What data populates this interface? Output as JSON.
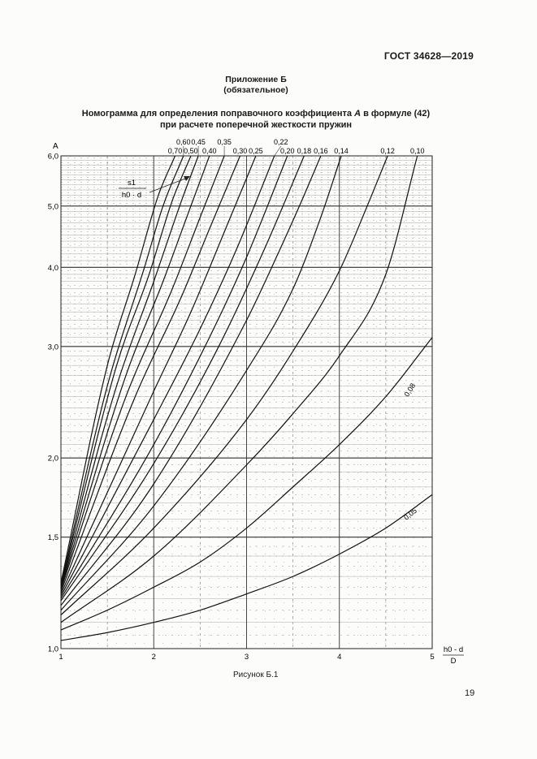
{
  "header": {
    "standard_code": "ГОСТ 34628—2019"
  },
  "appendix": {
    "title": "Приложение Б",
    "status": "(обязательное)"
  },
  "caption": {
    "line1_prefix": "Номограмма для определения поправочного коэффициента ",
    "line1_symbol": "A",
    "line1_suffix": " в формуле (42)",
    "line2": "при расчете поперечной жесткости пружин"
  },
  "figure_label": "Рисунок Б.1",
  "page_number": "19",
  "chart_data": {
    "type": "line",
    "ylabel": "A",
    "xlabel_numerator": "h0 - d",
    "xlabel_denominator": "D",
    "xlim": [
      1,
      5
    ],
    "ylim": [
      1.0,
      6.0
    ],
    "y_scale": "log",
    "grid": true,
    "x_ticks": [
      {
        "value": 1,
        "label": "1"
      },
      {
        "value": 2,
        "label": "2"
      },
      {
        "value": 3,
        "label": "3"
      },
      {
        "value": 4,
        "label": "4"
      },
      {
        "value": 5,
        "label": "5"
      }
    ],
    "y_ticks": [
      {
        "value": 1.0,
        "label": "1,0"
      },
      {
        "value": 1.5,
        "label": "1,5"
      },
      {
        "value": 2.0,
        "label": "2,0"
      },
      {
        "value": 3.0,
        "label": "3,0"
      },
      {
        "value": 4.0,
        "label": "4,0"
      },
      {
        "value": 5.0,
        "label": "5,0"
      },
      {
        "value": 6.0,
        "label": "6,0"
      }
    ],
    "parameter_symbol": "s1",
    "parameter_numerator": "s1",
    "parameter_denominator": "h0 · d",
    "series": [
      {
        "name": "0,05",
        "values": [
          [
            1.0,
            1.03
          ],
          [
            1.5,
            1.06
          ],
          [
            2.0,
            1.1
          ],
          [
            2.5,
            1.15
          ],
          [
            3.0,
            1.22
          ],
          [
            3.5,
            1.3
          ],
          [
            4.0,
            1.41
          ],
          [
            4.5,
            1.55
          ],
          [
            5.0,
            1.75
          ]
        ]
      },
      {
        "name": "0,08",
        "values": [
          [
            1.0,
            1.07
          ],
          [
            1.5,
            1.15
          ],
          [
            2.0,
            1.25
          ],
          [
            2.5,
            1.37
          ],
          [
            3.0,
            1.55
          ],
          [
            3.5,
            1.8
          ],
          [
            4.0,
            2.1
          ],
          [
            4.5,
            2.5
          ],
          [
            5.0,
            3.1
          ]
        ]
      },
      {
        "name": "0,10",
        "values": [
          [
            1.0,
            1.1
          ],
          [
            2.0,
            1.4
          ],
          [
            3.0,
            1.95
          ],
          [
            3.5,
            2.35
          ],
          [
            4.0,
            2.9
          ],
          [
            4.5,
            3.9
          ],
          [
            4.84,
            6.0
          ]
        ]
      },
      {
        "name": "0,12",
        "values": [
          [
            1.0,
            1.13
          ],
          [
            2.0,
            1.55
          ],
          [
            3.0,
            2.3
          ],
          [
            3.5,
            2.95
          ],
          [
            4.0,
            3.95
          ],
          [
            4.3,
            5.0
          ],
          [
            4.52,
            6.0
          ]
        ]
      },
      {
        "name": "0,14",
        "values": [
          [
            1.0,
            1.15
          ],
          [
            2.0,
            1.68
          ],
          [
            3.0,
            2.75
          ],
          [
            3.5,
            3.7
          ],
          [
            3.8,
            4.8
          ],
          [
            4.02,
            6.0
          ]
        ]
      },
      {
        "name": "0,16",
        "values": [
          [
            1.0,
            1.17
          ],
          [
            2.0,
            1.82
          ],
          [
            3.0,
            3.3
          ],
          [
            3.4,
            4.4
          ],
          [
            3.62,
            5.2
          ],
          [
            3.8,
            6.0
          ]
        ]
      },
      {
        "name": "0,18",
        "values": [
          [
            1.0,
            1.19
          ],
          [
            2.0,
            1.96
          ],
          [
            2.7,
            3.0
          ],
          [
            3.2,
            4.3
          ],
          [
            3.62,
            6.0
          ]
        ]
      },
      {
        "name": "0,20",
        "values": [
          [
            1.0,
            1.2
          ],
          [
            2.0,
            2.1
          ],
          [
            2.6,
            3.1
          ],
          [
            3.0,
            4.15
          ],
          [
            3.44,
            6.0
          ]
        ]
      },
      {
        "name": "0,22",
        "values": [
          [
            1.0,
            1.21
          ],
          [
            2.0,
            2.3
          ],
          [
            2.5,
            3.2
          ],
          [
            2.9,
            4.3
          ],
          [
            3.3,
            6.0
          ]
        ]
      },
      {
        "name": "0,25",
        "values": [
          [
            1.0,
            1.22
          ],
          [
            2.0,
            2.55
          ],
          [
            2.4,
            3.4
          ],
          [
            2.8,
            4.7
          ],
          [
            3.1,
            6.0
          ]
        ]
      },
      {
        "name": "0,30",
        "values": [
          [
            1.0,
            1.23
          ],
          [
            1.8,
            2.5
          ],
          [
            2.3,
            3.6
          ],
          [
            2.6,
            4.6
          ],
          [
            2.93,
            6.0
          ]
        ]
      },
      {
        "name": "0,35",
        "values": [
          [
            1.0,
            1.24
          ],
          [
            1.7,
            2.5
          ],
          [
            2.2,
            3.7
          ],
          [
            2.5,
            4.8
          ],
          [
            2.76,
            6.0
          ]
        ]
      },
      {
        "name": "0,40",
        "values": [
          [
            1.0,
            1.245
          ],
          [
            1.7,
            2.7
          ],
          [
            2.1,
            3.8
          ],
          [
            2.4,
            5.0
          ],
          [
            2.6,
            6.0
          ]
        ]
      },
      {
        "name": "0,45",
        "values": [
          [
            1.0,
            1.25
          ],
          [
            1.6,
            2.6
          ],
          [
            2.0,
            3.8
          ],
          [
            2.3,
            5.1
          ],
          [
            2.48,
            6.0
          ]
        ]
      },
      {
        "name": "0,50",
        "values": [
          [
            1.0,
            1.255
          ],
          [
            1.6,
            2.8
          ],
          [
            1.95,
            3.9
          ],
          [
            2.2,
            5.1
          ],
          [
            2.4,
            6.0
          ]
        ]
      },
      {
        "name": "0,60",
        "values": [
          [
            1.0,
            1.26
          ],
          [
            1.5,
            2.6
          ],
          [
            1.9,
            4.0
          ],
          [
            2.1,
            5.0
          ],
          [
            2.32,
            6.0
          ]
        ]
      },
      {
        "name": "0,70",
        "values": [
          [
            1.0,
            1.27
          ],
          [
            1.5,
            2.8
          ],
          [
            1.8,
            3.9
          ],
          [
            2.05,
            5.2
          ],
          [
            2.23,
            6.0
          ]
        ]
      }
    ]
  }
}
